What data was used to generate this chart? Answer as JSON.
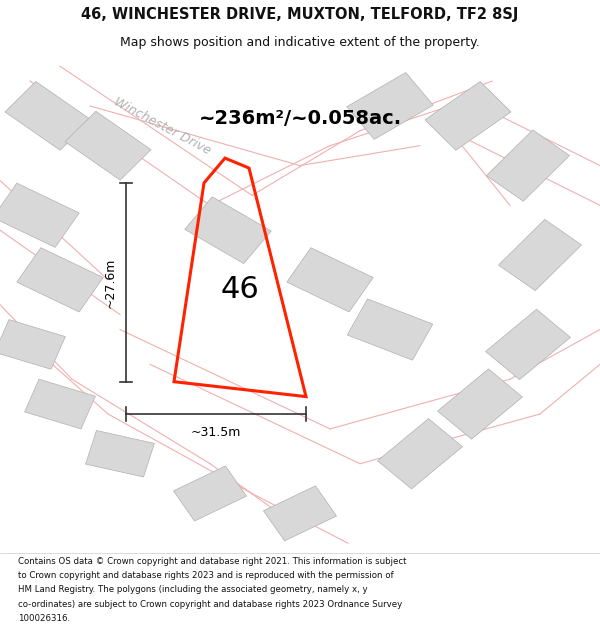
{
  "title_line1": "46, WINCHESTER DRIVE, MUXTON, TELFORD, TF2 8SJ",
  "title_line2": "Map shows position and indicative extent of the property.",
  "area_label": "~236m²/~0.058ac.",
  "number_label": "46",
  "dim_vertical": "~27.6m",
  "dim_horizontal": "~31.5m",
  "road_label": "Winchester Drive",
  "footer_text": "Contains OS data © Crown copyright and database right 2021. This information is subject to Crown copyright and database rights 2023 and is reproduced with the permission of HM Land Registry. The polygons (including the associated geometry, namely x, y co-ordinates) are subject to Crown copyright and database rights 2023 Ordnance Survey 100026316.",
  "bg_color": "#f5f5f5",
  "map_bg": "#f0eeee",
  "building_fill": "#d8d8d8",
  "building_edge": "#b0b0b0",
  "property_line_color": "#ff2200",
  "road_line_color": "#f0b0b0",
  "dim_color": "#333333",
  "title_color": "#111111",
  "footer_color": "#111111"
}
